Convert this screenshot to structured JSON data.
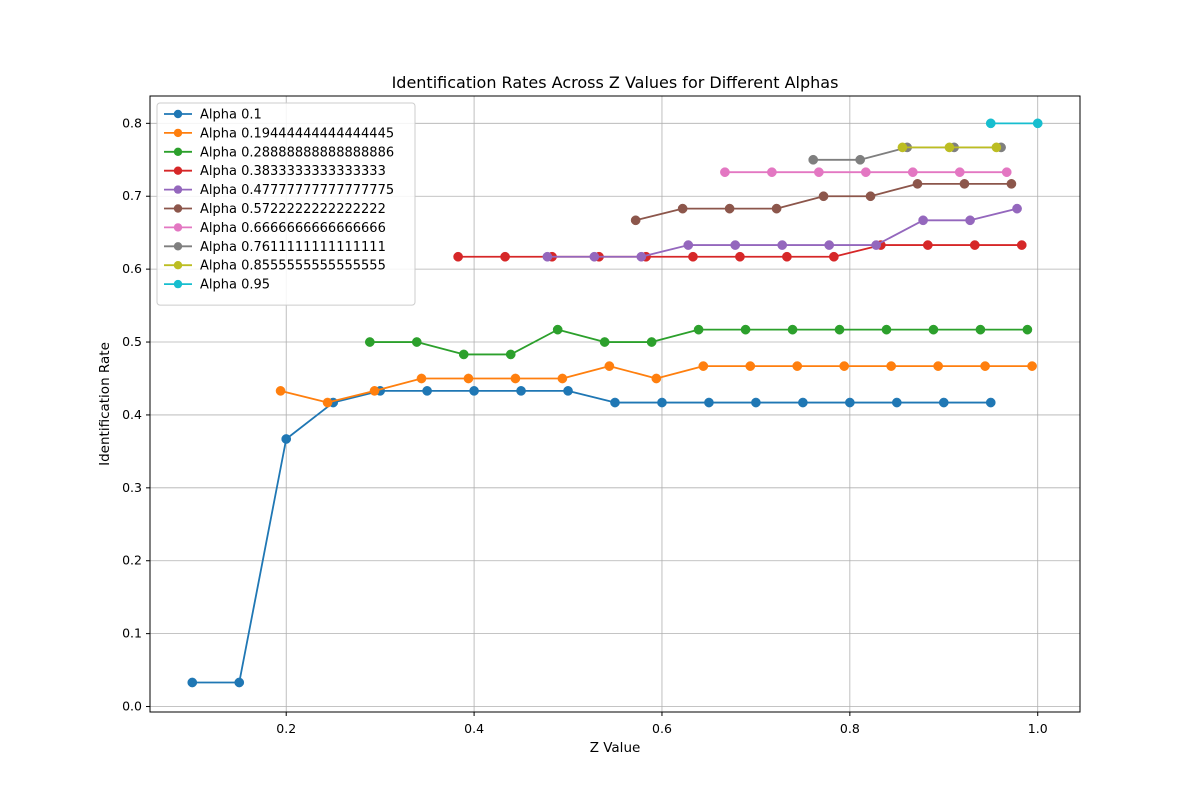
{
  "chart_data": {
    "type": "line",
    "title": "Identification Rates Across Z Values for Different Alphas",
    "xlabel": "Z Value",
    "ylabel": "Identification Rate",
    "xlim": [
      0.055,
      1.045
    ],
    "ylim": [
      -0.0075,
      0.8375
    ],
    "xticks": [
      0.2,
      0.4,
      0.6,
      0.8,
      1.0
    ],
    "xtick_labels": [
      "0.2",
      "0.4",
      "0.6",
      "0.8",
      "1.0"
    ],
    "yticks": [
      0.0,
      0.1,
      0.2,
      0.3,
      0.4,
      0.5,
      0.6,
      0.7,
      0.8
    ],
    "ytick_labels": [
      "0.0",
      "0.1",
      "0.2",
      "0.3",
      "0.4",
      "0.5",
      "0.6",
      "0.7",
      "0.8"
    ],
    "grid": true,
    "legend_position": "upper-left",
    "series": [
      {
        "name": "Alpha 0.1",
        "color": "#1f77b4",
        "x": [
          0.1,
          0.15,
          0.2,
          0.25,
          0.3,
          0.35,
          0.4,
          0.45,
          0.5,
          0.55,
          0.6,
          0.65,
          0.7,
          0.75,
          0.8,
          0.85,
          0.9,
          0.95
        ],
        "y": [
          0.033,
          0.033,
          0.367,
          0.417,
          0.433,
          0.433,
          0.433,
          0.433,
          0.433,
          0.417,
          0.417,
          0.417,
          0.417,
          0.417,
          0.417,
          0.417,
          0.417,
          0.417
        ]
      },
      {
        "name": "Alpha 0.19444444444444445",
        "color": "#ff7f0e",
        "x": [
          0.194,
          0.244,
          0.294,
          0.344,
          0.394,
          0.444,
          0.494,
          0.544,
          0.594,
          0.644,
          0.694,
          0.744,
          0.794,
          0.844,
          0.894,
          0.944,
          0.994
        ],
        "y": [
          0.433,
          0.417,
          0.433,
          0.45,
          0.45,
          0.45,
          0.45,
          0.467,
          0.45,
          0.467,
          0.467,
          0.467,
          0.467,
          0.467,
          0.467,
          0.467,
          0.467
        ]
      },
      {
        "name": "Alpha 0.28888888888888886",
        "color": "#2ca02c",
        "x": [
          0.289,
          0.339,
          0.389,
          0.439,
          0.489,
          0.539,
          0.589,
          0.639,
          0.689,
          0.739,
          0.789,
          0.839,
          0.889,
          0.939,
          0.989
        ],
        "y": [
          0.5,
          0.5,
          0.483,
          0.483,
          0.517,
          0.5,
          0.5,
          0.517,
          0.517,
          0.517,
          0.517,
          0.517,
          0.517,
          0.517,
          0.517
        ]
      },
      {
        "name": "Alpha 0.3833333333333333",
        "color": "#d62728",
        "x": [
          0.383,
          0.433,
          0.483,
          0.533,
          0.583,
          0.633,
          0.683,
          0.733,
          0.783,
          0.833,
          0.883,
          0.933,
          0.983
        ],
        "y": [
          0.617,
          0.617,
          0.617,
          0.617,
          0.617,
          0.617,
          0.617,
          0.617,
          0.617,
          0.633,
          0.633,
          0.633,
          0.633
        ]
      },
      {
        "name": "Alpha 0.47777777777777775",
        "color": "#9467bd",
        "x": [
          0.478,
          0.528,
          0.578,
          0.628,
          0.678,
          0.728,
          0.778,
          0.828,
          0.878,
          0.928,
          0.978
        ],
        "y": [
          0.617,
          0.617,
          0.617,
          0.633,
          0.633,
          0.633,
          0.633,
          0.633,
          0.667,
          0.667,
          0.683
        ]
      },
      {
        "name": "Alpha 0.5722222222222222",
        "color": "#8c564b",
        "x": [
          0.572,
          0.622,
          0.672,
          0.722,
          0.772,
          0.822,
          0.872,
          0.922,
          0.972
        ],
        "y": [
          0.667,
          0.683,
          0.683,
          0.683,
          0.7,
          0.7,
          0.717,
          0.717,
          0.717
        ]
      },
      {
        "name": "Alpha 0.6666666666666666",
        "color": "#e377c2",
        "x": [
          0.667,
          0.717,
          0.767,
          0.817,
          0.867,
          0.917,
          0.967
        ],
        "y": [
          0.733,
          0.733,
          0.733,
          0.733,
          0.733,
          0.733,
          0.733
        ]
      },
      {
        "name": "Alpha 0.7611111111111111",
        "color": "#7f7f7f",
        "x": [
          0.761,
          0.811,
          0.861,
          0.911,
          0.961
        ],
        "y": [
          0.75,
          0.75,
          0.767,
          0.767,
          0.767
        ]
      },
      {
        "name": "Alpha 0.8555555555555555",
        "color": "#bcbd22",
        "x": [
          0.856,
          0.906,
          0.956
        ],
        "y": [
          0.767,
          0.767,
          0.767
        ]
      },
      {
        "name": "Alpha 0.95",
        "color": "#17becf",
        "x": [
          0.95,
          1.0
        ],
        "y": [
          0.8,
          0.8
        ]
      }
    ]
  }
}
